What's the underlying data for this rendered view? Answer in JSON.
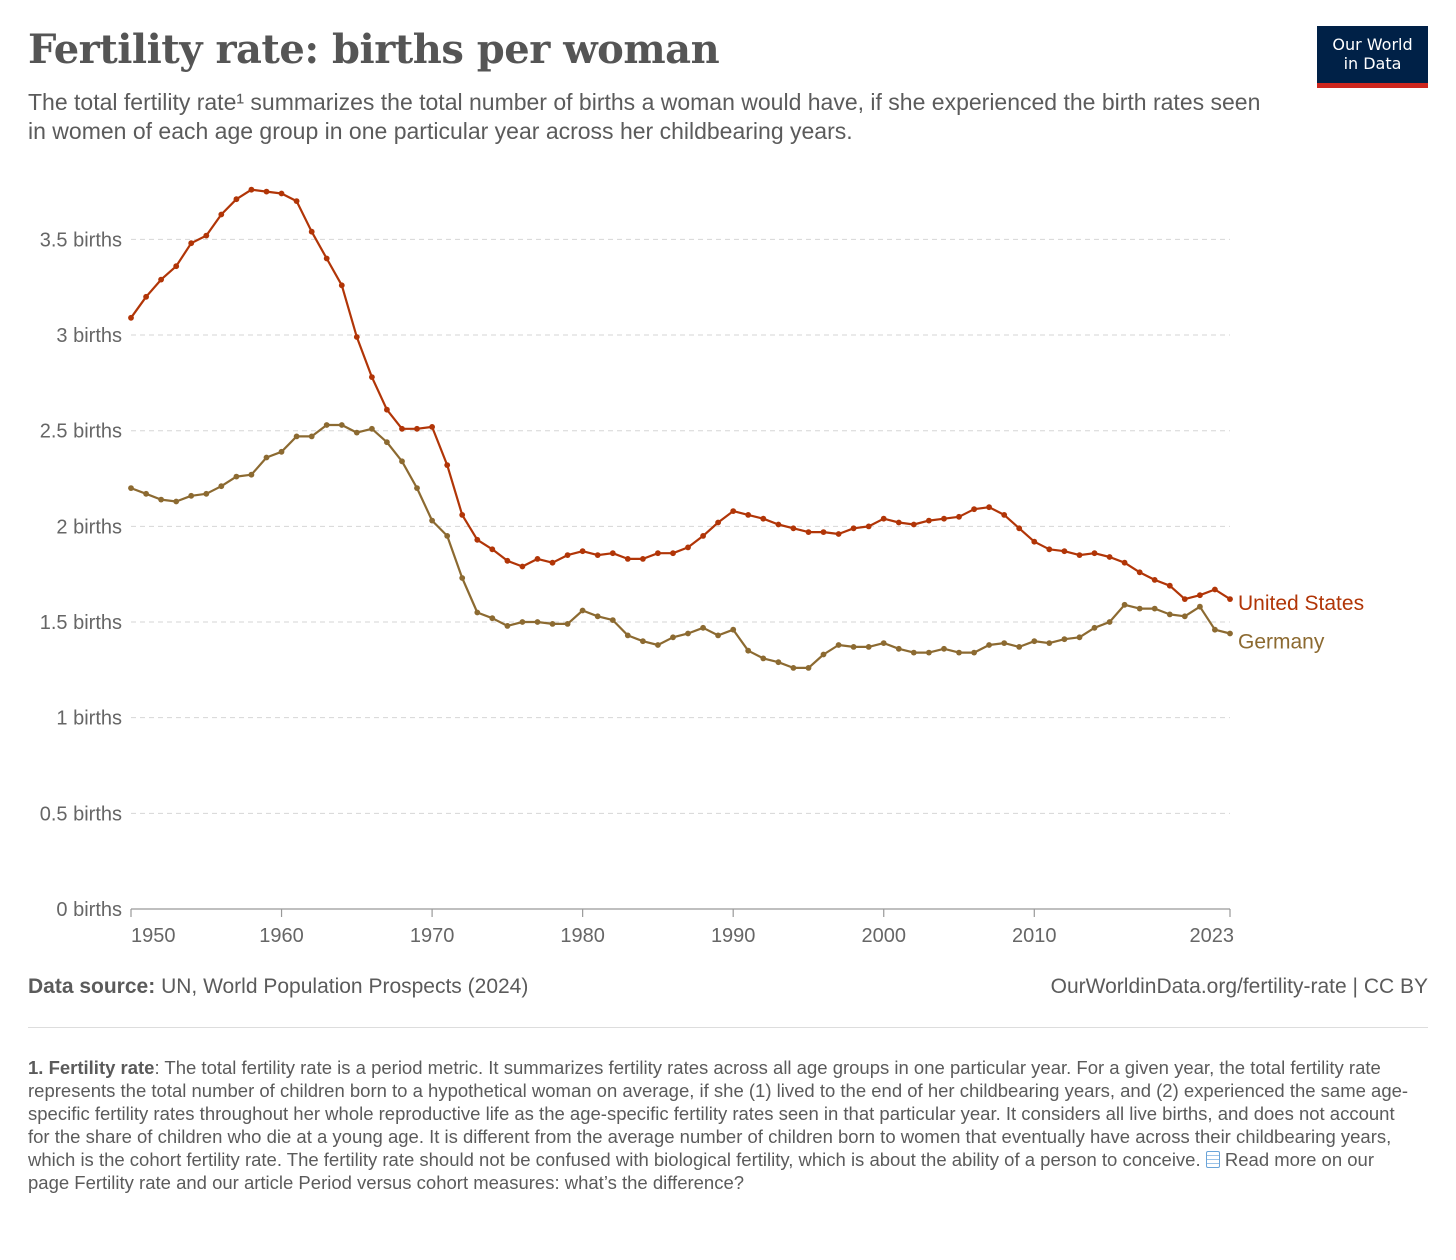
{
  "header": {
    "title": "Fertility rate: births per woman",
    "subtitle": "The total fertility rate¹ summarizes the total number of births a woman would have, if she experienced the birth rates seen in women of each age group in one particular year across her childbearing years.",
    "logo_line1": "Our World",
    "logo_line2": "in Data"
  },
  "chart_data": {
    "type": "line",
    "x_start": 1950,
    "x_end": 2023,
    "ylim": [
      0,
      3.8
    ],
    "y_ticks": [
      0,
      0.5,
      1,
      1.5,
      2,
      2.5,
      3,
      3.5
    ],
    "y_tick_labels": [
      "0 births",
      "0.5 births",
      "1 births",
      "1.5 births",
      "2 births",
      "2.5 births",
      "3 births",
      "3.5 births"
    ],
    "x_ticks": [
      1950,
      1960,
      1970,
      1980,
      1990,
      2000,
      2010,
      2023
    ],
    "x_tick_labels": [
      "1950",
      "1960",
      "1970",
      "1980",
      "1990",
      "2000",
      "2010",
      "2023"
    ],
    "grid": "horizontal dashed",
    "legend": "line-end labels",
    "series": [
      {
        "name": "United States",
        "color": "#b13507",
        "values": [
          3.09,
          3.2,
          3.29,
          3.36,
          3.48,
          3.52,
          3.63,
          3.71,
          3.76,
          3.75,
          3.74,
          3.7,
          3.54,
          3.4,
          3.26,
          2.99,
          2.78,
          2.61,
          2.51,
          2.51,
          2.52,
          2.32,
          2.06,
          1.93,
          1.88,
          1.82,
          1.79,
          1.83,
          1.81,
          1.85,
          1.87,
          1.85,
          1.86,
          1.83,
          1.83,
          1.86,
          1.86,
          1.89,
          1.95,
          2.02,
          2.08,
          2.06,
          2.04,
          2.01,
          1.99,
          1.97,
          1.97,
          1.96,
          1.99,
          2.0,
          2.04,
          2.02,
          2.01,
          2.03,
          2.04,
          2.05,
          2.09,
          2.1,
          2.06,
          1.99,
          1.92,
          1.88,
          1.87,
          1.85,
          1.86,
          1.84,
          1.81,
          1.76,
          1.72,
          1.69,
          1.62,
          1.64,
          1.67,
          1.62
        ]
      },
      {
        "name": "Germany",
        "color": "#8c6a31",
        "values": [
          2.2,
          2.17,
          2.14,
          2.13,
          2.16,
          2.17,
          2.21,
          2.26,
          2.27,
          2.36,
          2.39,
          2.47,
          2.47,
          2.53,
          2.53,
          2.49,
          2.51,
          2.44,
          2.34,
          2.2,
          2.03,
          1.95,
          1.73,
          1.55,
          1.52,
          1.48,
          1.5,
          1.5,
          1.49,
          1.49,
          1.56,
          1.53,
          1.51,
          1.43,
          1.4,
          1.38,
          1.42,
          1.44,
          1.47,
          1.43,
          1.46,
          1.35,
          1.31,
          1.29,
          1.26,
          1.26,
          1.33,
          1.38,
          1.37,
          1.37,
          1.39,
          1.36,
          1.34,
          1.34,
          1.36,
          1.34,
          1.34,
          1.38,
          1.39,
          1.37,
          1.4,
          1.39,
          1.41,
          1.42,
          1.47,
          1.5,
          1.59,
          1.57,
          1.57,
          1.54,
          1.53,
          1.58,
          1.46,
          1.44
        ]
      }
    ]
  },
  "footer": {
    "source_label": "Data source:",
    "source_text": "UN, World Population Prospects (2024)",
    "url_text": "OurWorldinData.org/fertility-rate | CC BY"
  },
  "note": {
    "heading": "1. Fertility rate",
    "body": ": The total fertility rate is a period metric. It summarizes fertility rates across all age groups in one particular year. For a given year, the total fertility rate represents the total number of children born to a hypothetical woman on average, if she (1) lived to the end of her childbearing years, and (2) experienced the same age-specific fertility rates throughout her whole reproductive life as the age-specific fertility rates seen in that particular year. It considers all live births, and does not account for the share of children who die at a young age. It is different from the average number of children born to women that eventually have across their childbearing years, which is the cohort fertility rate. The fertility rate should not be confused with biological fertility, which is about the ability of a person to conceive.",
    "read_more": "Read more on our page Fertility rate and our article Period versus cohort measures: what’s the difference?",
    "doc_icon": "document-icon"
  }
}
